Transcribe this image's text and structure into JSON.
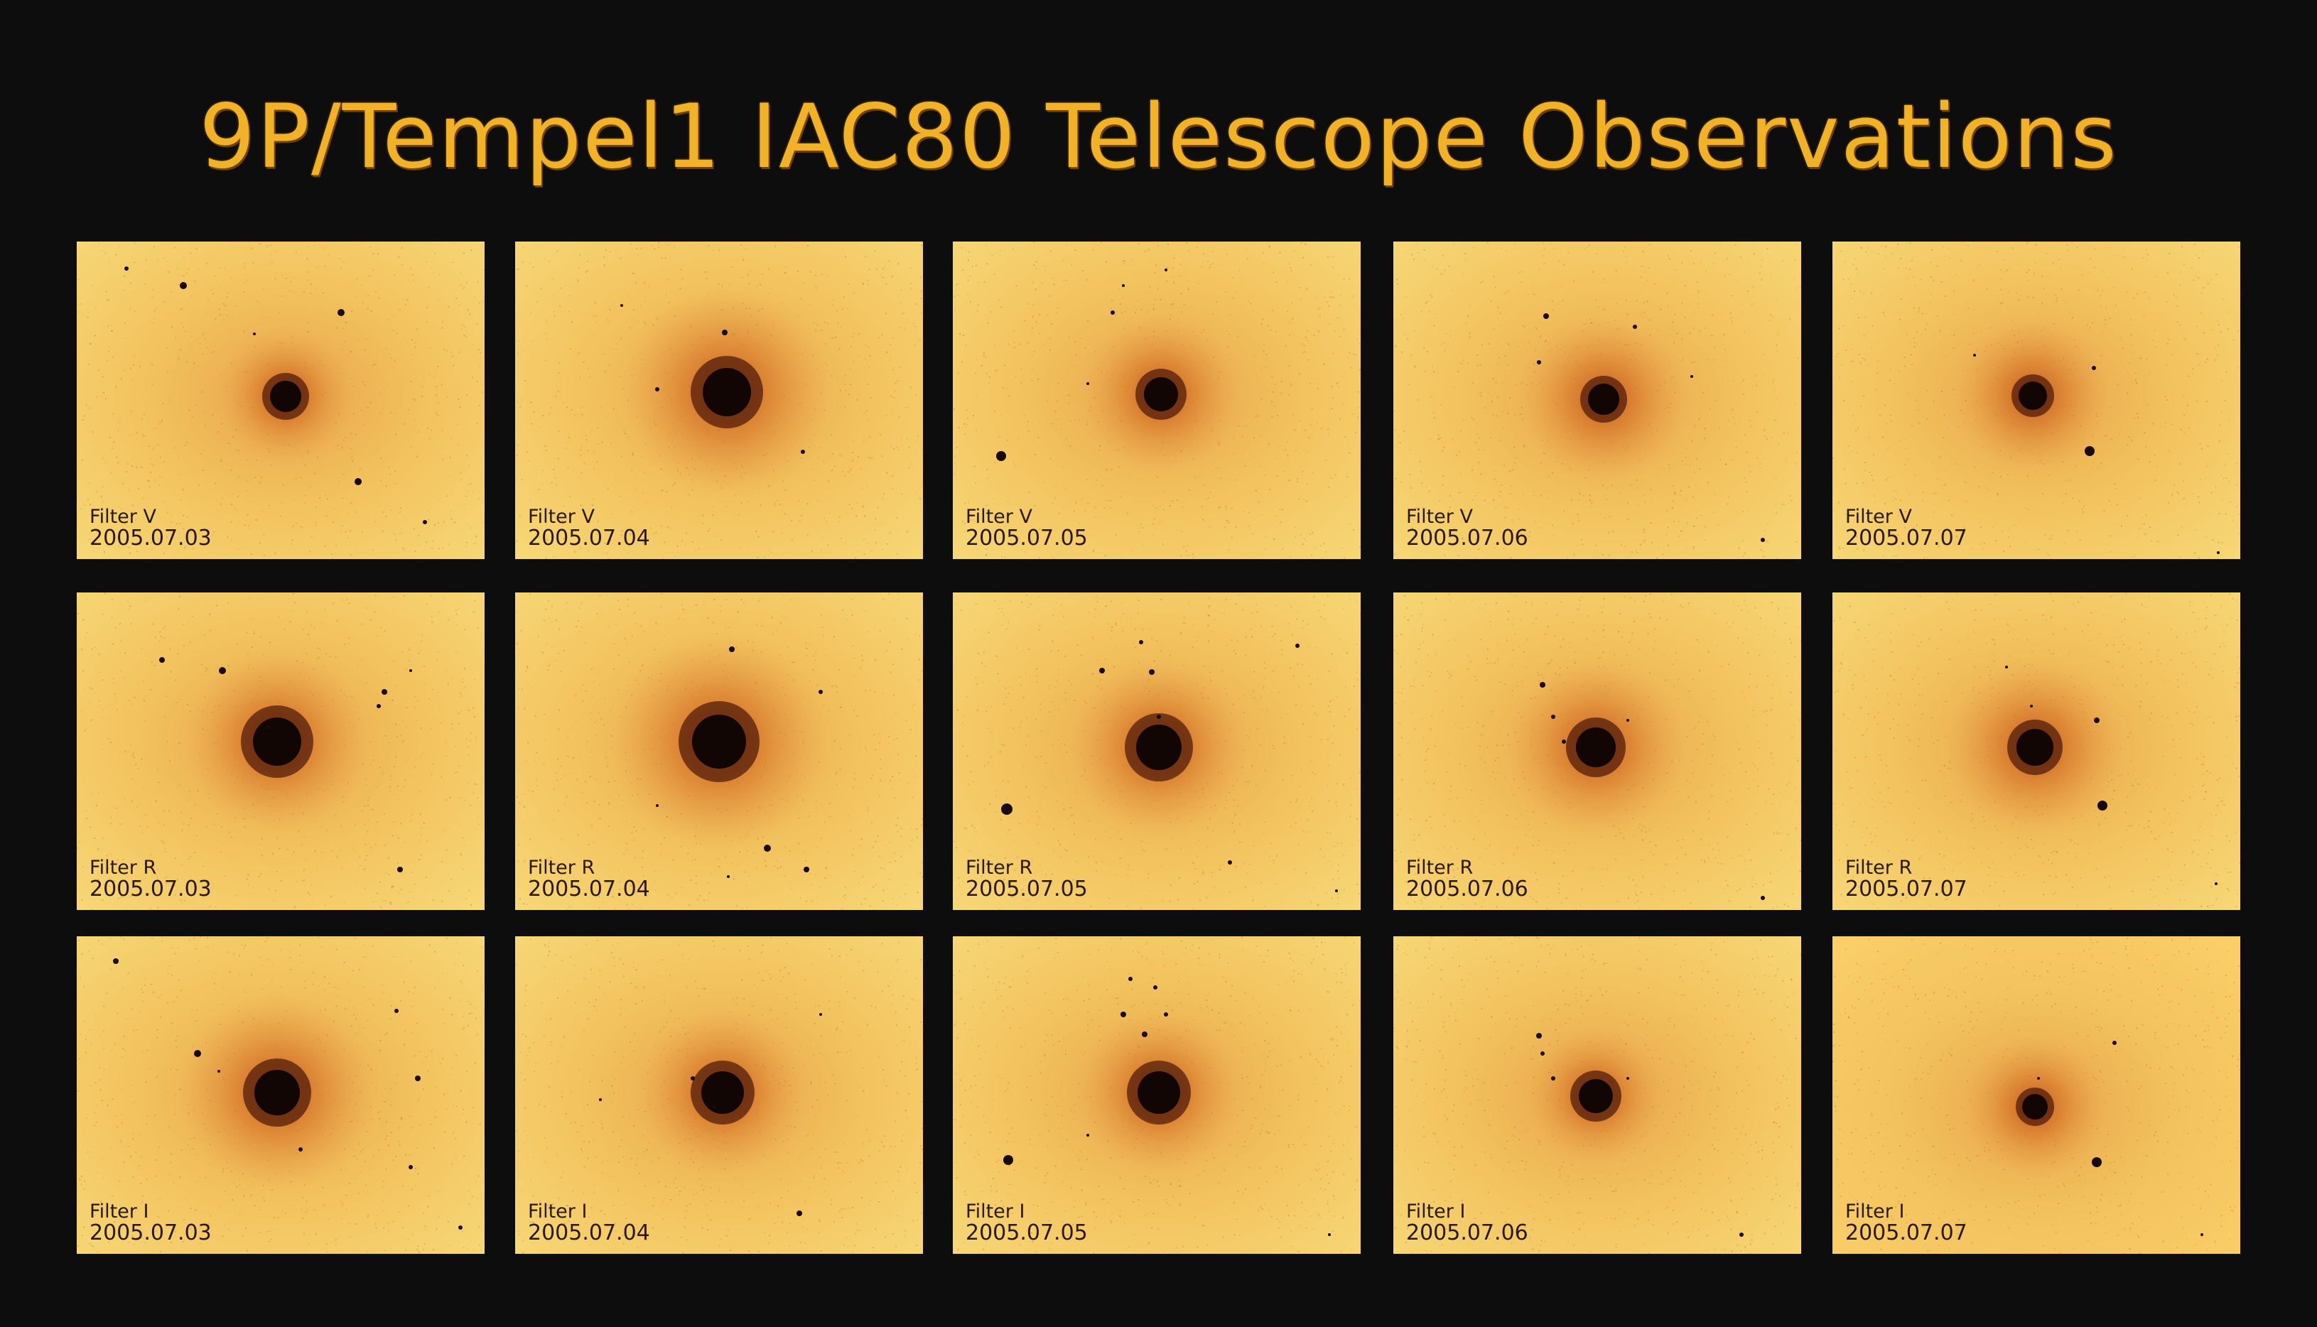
{
  "title": "9P/Tempel1  IAC80 Telescope Observations",
  "colors": {
    "background": "#0d0d0d",
    "title": "#f2b228",
    "panel_light": "#f8d978",
    "panel_mid": "#e8a24a",
    "coma": "#c0541a",
    "nucleus": "#120604",
    "label": "#2a1a05"
  },
  "rows": [
    {
      "filter": "Filter V",
      "panels": [
        {
          "filter": "Filter V",
          "date": "2005.07.03"
        },
        {
          "filter": "Filter V",
          "date": "2005.07.04"
        },
        {
          "filter": "Filter V",
          "date": "2005.07.05"
        },
        {
          "filter": "Filter V",
          "date": "2005.07.06"
        },
        {
          "filter": "Filter V",
          "date": "2005.07.07"
        }
      ]
    },
    {
      "filter": "Filter R",
      "panels": [
        {
          "filter": "Filter R",
          "date": "2005.07.03"
        },
        {
          "filter": "Filter R",
          "date": "2005.07.04"
        },
        {
          "filter": "Filter R",
          "date": "2005.07.05"
        },
        {
          "filter": "Filter R",
          "date": "2005.07.06"
        },
        {
          "filter": "Filter R",
          "date": "2005.07.07"
        }
      ]
    },
    {
      "filter": "Filter I",
      "panels": [
        {
          "filter": "Filter I",
          "date": "2005.07.03"
        },
        {
          "filter": "Filter I",
          "date": "2005.07.04"
        },
        {
          "filter": "Filter I",
          "date": "2005.07.05"
        },
        {
          "filter": "Filter I",
          "date": "2005.07.06"
        },
        {
          "filter": "Filter I",
          "date": "2005.07.07"
        }
      ]
    }
  ]
}
